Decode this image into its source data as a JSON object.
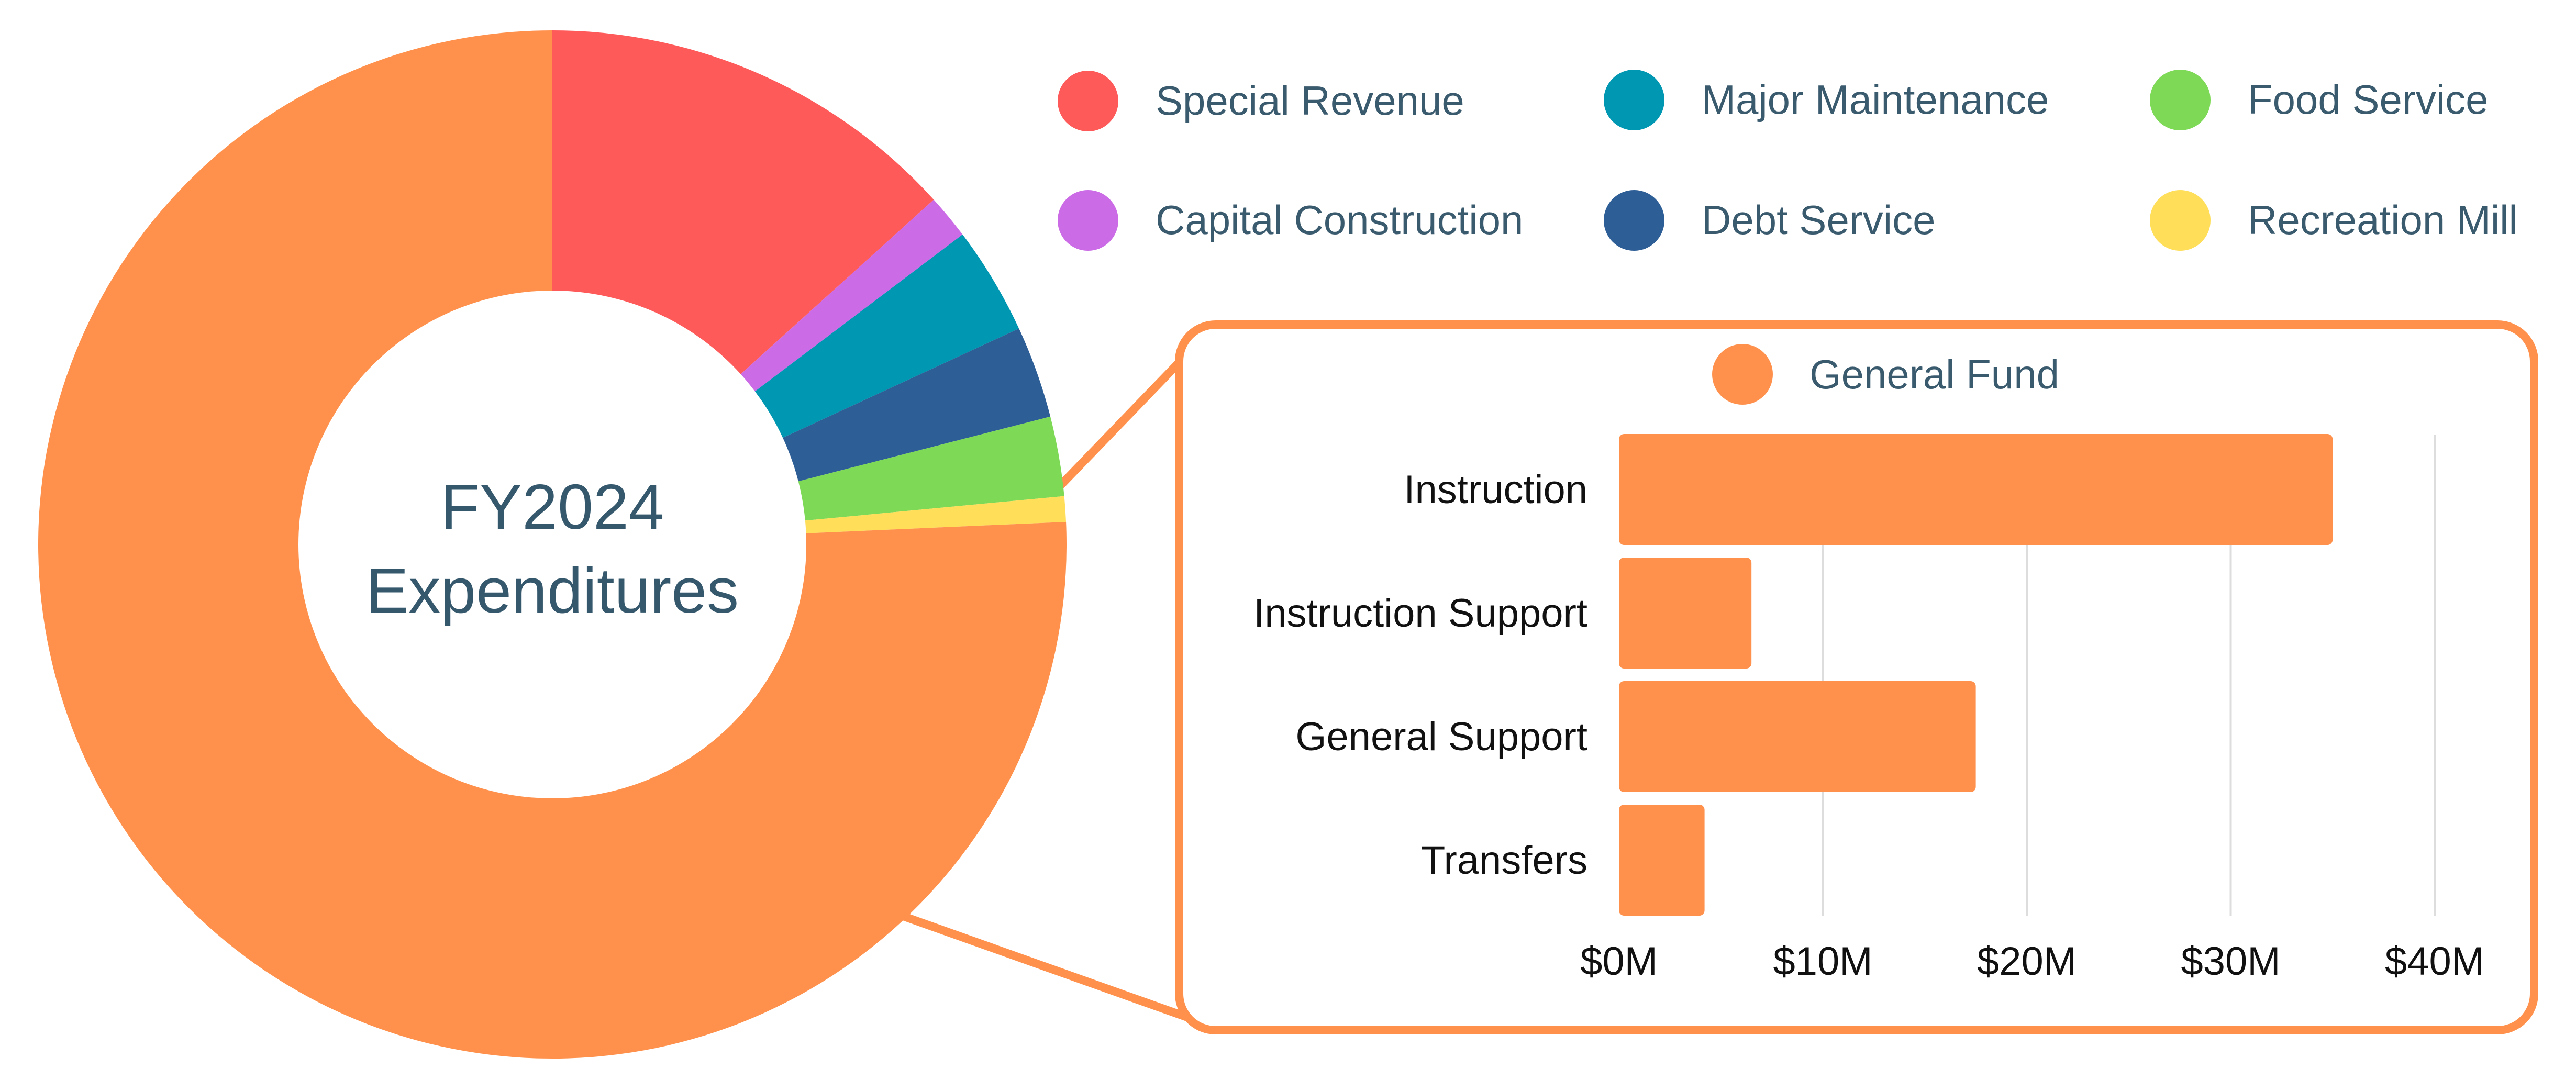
{
  "chart_data": [
    {
      "type": "pie",
      "title_lines": [
        "FY2024",
        "Expenditures"
      ],
      "donut": true,
      "slices": [
        {
          "name": "Special Revenue",
          "value": 13.3,
          "color": "#ff5a5a"
        },
        {
          "name": "Capital Construction",
          "value": 1.4,
          "color": "#cb6ce6"
        },
        {
          "name": "Major Maintenance",
          "value": 3.4,
          "color": "#0097b2"
        },
        {
          "name": "Debt Service",
          "value": 2.9,
          "color": "#2e5e96"
        },
        {
          "name": "Food Service",
          "value": 2.5,
          "color": "#7ed957"
        },
        {
          "name": "Recreation Mill",
          "value": 0.8,
          "color": "#ffde59"
        },
        {
          "name": "General Fund",
          "value": 75.7,
          "color": "#ff914d"
        }
      ],
      "legend": {
        "placement": "top-right",
        "items": [
          {
            "name": "Special Revenue",
            "color": "#ff5a5a"
          },
          {
            "name": "Major Maintenance",
            "color": "#0097b2"
          },
          {
            "name": "Food Service",
            "color": "#7ed957"
          },
          {
            "name": "Capital Construction",
            "color": "#cb6ce6"
          },
          {
            "name": "Debt Service",
            "color": "#2e5e96"
          },
          {
            "name": "Recreation Mill",
            "color": "#ffde59"
          }
        ]
      }
    },
    {
      "type": "bar",
      "orientation": "horizontal",
      "legend_label": "General Fund",
      "color": "#ff914d",
      "categories": [
        "Instruction",
        "Instruction Support",
        "General Support",
        "Transfers"
      ],
      "values": [
        35,
        6.5,
        17.5,
        4.2
      ],
      "xlim": [
        0,
        40
      ],
      "xticks": [
        0,
        10,
        20,
        30,
        40
      ],
      "xtick_labels": [
        "$0M",
        "$10M",
        "$20M",
        "$30M",
        "$40M"
      ],
      "grid": true
    }
  ]
}
